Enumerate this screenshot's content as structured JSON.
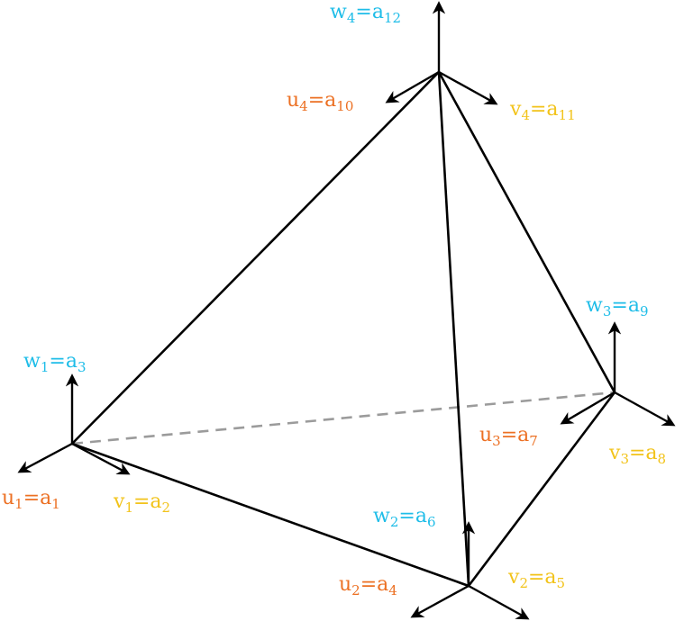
{
  "colors": {
    "u": "#ec7023",
    "v": "#f2c31a",
    "w": "#1fbde8",
    "edge": "#000000",
    "hidden_edge": "#9b9b9b"
  },
  "labels": {
    "node1": {
      "u": {
        "var": "u",
        "var_sub": "1",
        "dof": "a",
        "dof_sub": "1"
      },
      "v": {
        "var": "v",
        "var_sub": "1",
        "dof": "a",
        "dof_sub": "2"
      },
      "w": {
        "var": "w",
        "var_sub": "1",
        "dof": "a",
        "dof_sub": "3"
      }
    },
    "node2": {
      "u": {
        "var": "u",
        "var_sub": "2",
        "dof": "a",
        "dof_sub": "4"
      },
      "v": {
        "var": "v",
        "var_sub": "2",
        "dof": "a",
        "dof_sub": "5"
      },
      "w": {
        "var": "w",
        "var_sub": "2",
        "dof": "a",
        "dof_sub": "6"
      }
    },
    "node3": {
      "u": {
        "var": "u",
        "var_sub": "3",
        "dof": "a",
        "dof_sub": "7"
      },
      "v": {
        "var": "v",
        "var_sub": "3",
        "dof": "a",
        "dof_sub": "8"
      },
      "w": {
        "var": "w",
        "var_sub": "3",
        "dof": "a",
        "dof_sub": "9"
      }
    },
    "node4": {
      "u": {
        "var": "u",
        "var_sub": "4",
        "dof": "a",
        "dof_sub": "10"
      },
      "v": {
        "var": "v",
        "var_sub": "4",
        "dof": "a",
        "dof_sub": "11"
      },
      "w": {
        "var": "w",
        "var_sub": "4",
        "dof": "a",
        "dof_sub": "12"
      }
    }
  },
  "equals_sign": "="
}
